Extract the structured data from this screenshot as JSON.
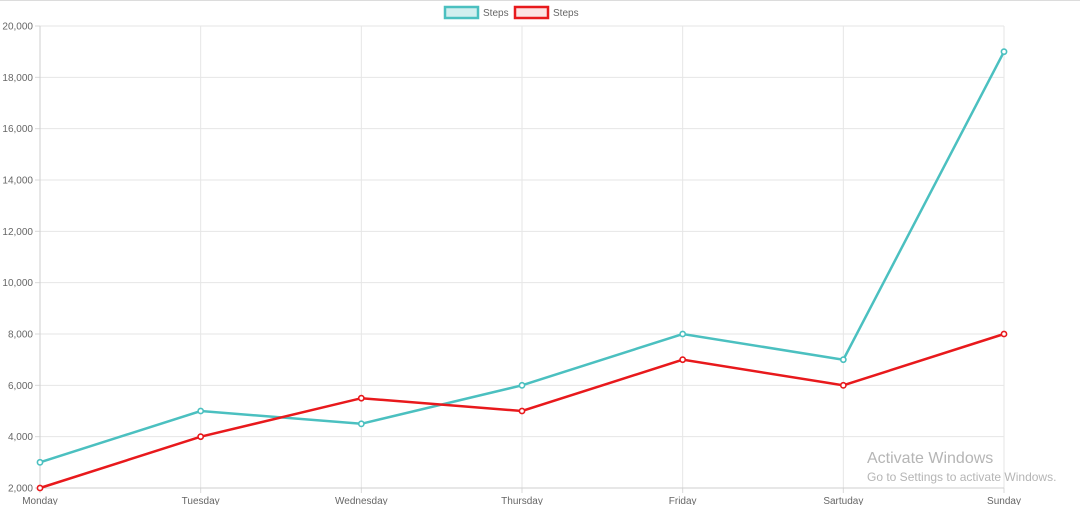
{
  "chart_data": {
    "type": "line",
    "categories": [
      "Monday",
      "Tuesday",
      "Wednesday",
      "Thursday",
      "Friday",
      "Sartuday",
      "Sunday"
    ],
    "series": [
      {
        "name": "Steps",
        "values": [
          3000,
          5000,
          4500,
          6000,
          8000,
          7000,
          19000
        ],
        "color": "#4bc0c0"
      },
      {
        "name": "Steps",
        "values": [
          2000,
          4000,
          5500,
          5000,
          7000,
          6000,
          8000
        ],
        "color": "#e8191c"
      }
    ],
    "ylim": [
      2000,
      20000
    ],
    "yticks": [
      2000,
      4000,
      6000,
      8000,
      10000,
      12000,
      14000,
      16000,
      18000,
      20000
    ],
    "ytick_labels": [
      "2,000",
      "4,000",
      "6,000",
      "8,000",
      "10,000",
      "12,000",
      "14,000",
      "16,000",
      "18,000",
      "20,000"
    ],
    "grid": true,
    "legend_position": "top-center",
    "title": "",
    "xlabel": "",
    "ylabel": ""
  },
  "watermark": {
    "title": "Activate Windows",
    "subtitle": "Go to Settings to activate Windows."
  }
}
